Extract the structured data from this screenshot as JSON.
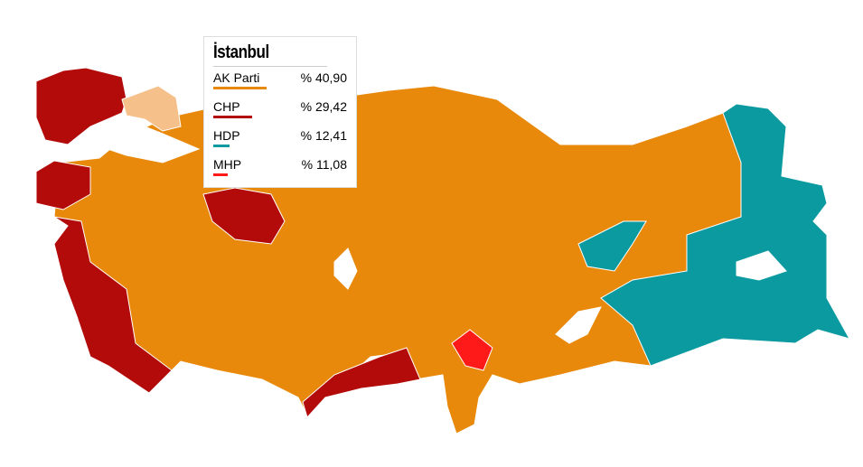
{
  "province": "İstanbul",
  "results": [
    {
      "party": "AK Parti",
      "value": "% 40,90",
      "pct": 40.9,
      "color": "#e8890c"
    },
    {
      "party": "CHP",
      "value": "% 29,42",
      "pct": 29.42,
      "color": "#b30a0a"
    },
    {
      "party": "HDP",
      "value": "% 12,41",
      "pct": 12.41,
      "color": "#0a9aa0"
    },
    {
      "party": "MHP",
      "value": "% 11,08",
      "pct": 11.08,
      "color": "#ff1a1a"
    }
  ],
  "colors": {
    "akp": "#e8890c",
    "chp": "#b30a0a",
    "hdp": "#0a9aa0",
    "mhp": "#ff1a1a",
    "istanbul_hover": "#f5c08a"
  }
}
